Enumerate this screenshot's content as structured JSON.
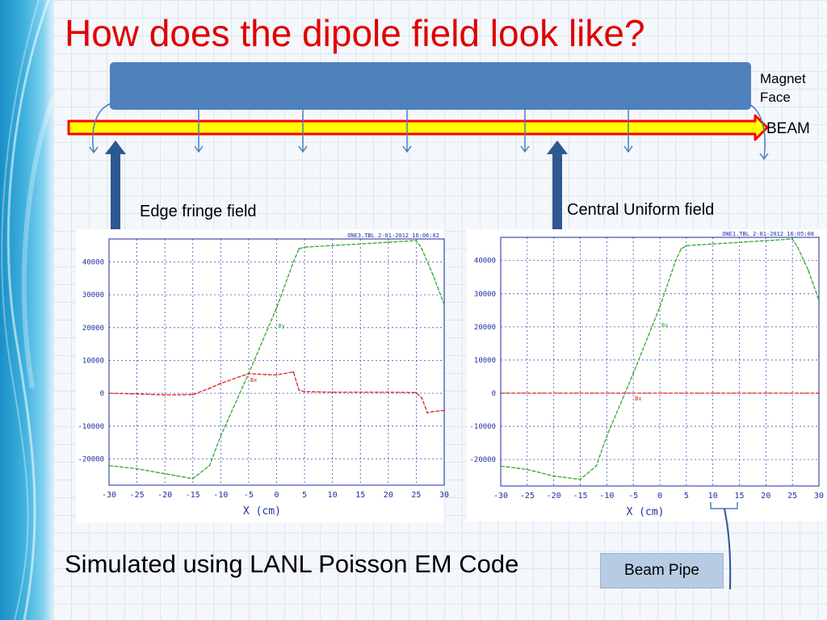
{
  "slide": {
    "title": "How does the dipole field look like?",
    "magnet_face_label_line1": "Magnet",
    "magnet_face_label_line2": "Face",
    "beam_label": "BEAM",
    "edge_fringe_label": "Edge fringe field",
    "central_uniform_label": "Central Uniform field",
    "caption": "Simulated using LANL Poisson EM Code",
    "beam_pipe_label": "Beam Pipe"
  },
  "colors": {
    "title": "#e00000",
    "magnet": "#4f81bd",
    "beam_fill": "#ffff00",
    "beam_outline": "#ff0000",
    "arrow": "#2e5891",
    "field_line": "#4a7ebb",
    "by_curve": "#2faa2f",
    "bx_curve": "#e02020",
    "axis_text": "#2030a0"
  },
  "chart_data": [
    {
      "type": "line",
      "header": "ONE3.TBL",
      "date": "2-01-2012",
      "time": "16:06:02",
      "xlabel": "X (cm)",
      "xlim": [
        -30,
        30
      ],
      "ylim": [
        -28000,
        47000
      ],
      "xticks": [
        -30,
        -25,
        -20,
        -15,
        -10,
        -5,
        0,
        5,
        10,
        15,
        20,
        25,
        30
      ],
      "yticks": [
        -20000,
        -10000,
        0,
        10000,
        20000,
        30000,
        40000
      ],
      "grid": true,
      "series": [
        {
          "name": "By",
          "color": "#2faa2f",
          "x": [
            -30,
            -25,
            -20,
            -15,
            -12,
            -10,
            -5,
            0,
            3,
            4,
            5,
            10,
            15,
            20,
            25,
            26,
            28,
            30
          ],
          "y": [
            -22000,
            -23000,
            -24500,
            -26000,
            -22000,
            -13000,
            6000,
            26000,
            40000,
            44000,
            44500,
            45000,
            45500,
            46000,
            46500,
            44000,
            36000,
            27000
          ]
        },
        {
          "name": "Bx",
          "color": "#e02020",
          "x": [
            -30,
            -25,
            -20,
            -15,
            -12,
            -10,
            -5,
            -2,
            0,
            3,
            4,
            5,
            10,
            15,
            20,
            25,
            26,
            27,
            28,
            30
          ],
          "y": [
            0,
            -200,
            -500,
            -400,
            1500,
            3000,
            6000,
            5700,
            5600,
            6500,
            1000,
            500,
            300,
            300,
            300,
            200,
            -1500,
            -6000,
            -5600,
            -5200
          ]
        }
      ],
      "annotations": [
        "Bx",
        "By"
      ]
    },
    {
      "type": "line",
      "header": "ONE1.TBL",
      "date": "2-01-2012",
      "time": "16:05:08",
      "xlabel": "X (cm)",
      "xlim": [
        -30,
        30
      ],
      "ylim": [
        -28000,
        47000
      ],
      "xticks": [
        -30,
        -25,
        -20,
        -15,
        -10,
        -5,
        0,
        5,
        10,
        15,
        20,
        25,
        30
      ],
      "yticks": [
        -20000,
        -10000,
        0,
        10000,
        20000,
        30000,
        40000
      ],
      "grid": true,
      "series": [
        {
          "name": "By",
          "color": "#2faa2f",
          "x": [
            -30,
            -25,
            -20,
            -15,
            -12,
            -10,
            -5,
            0,
            3,
            4,
            5,
            10,
            15,
            20,
            25,
            26,
            28,
            30
          ],
          "y": [
            -22000,
            -23000,
            -25000,
            -26000,
            -22000,
            -13000,
            6000,
            26000,
            40000,
            43500,
            44500,
            45000,
            45500,
            46000,
            46500,
            44000,
            37000,
            28000
          ]
        },
        {
          "name": "Bx",
          "color": "#e02020",
          "x": [
            -30,
            30
          ],
          "y": [
            0,
            0
          ]
        }
      ],
      "annotations": [
        "Bx",
        "By"
      ]
    }
  ]
}
